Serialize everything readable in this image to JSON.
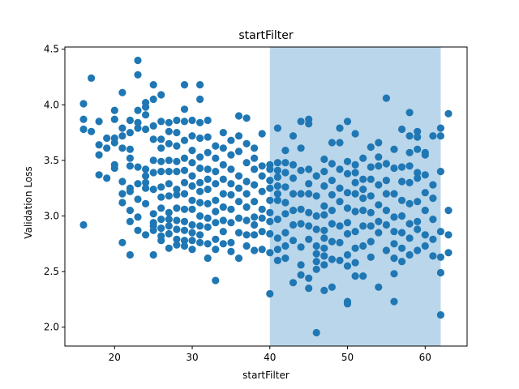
{
  "chart_data": {
    "type": "scatter",
    "title": "startFilter",
    "xlabel": "startFilter",
    "ylabel": "Validation Loss",
    "xlim": [
      13.6,
      65.4
    ],
    "ylim": [
      1.83,
      4.52
    ],
    "xticks": [
      20,
      30,
      40,
      50,
      60
    ],
    "yticks": [
      2.0,
      2.5,
      3.0,
      3.5,
      4.0,
      4.5
    ],
    "xtick_labels": [
      "20",
      "30",
      "40",
      "50",
      "60"
    ],
    "ytick_labels": [
      "2.0",
      "2.5",
      "3.0",
      "3.5",
      "4.0",
      "4.5"
    ],
    "grid": false,
    "highlight_span": {
      "x": [
        40,
        62
      ],
      "color": "#bad6ea"
    },
    "marker_color": "#1f77b4",
    "x": [
      16,
      16,
      16,
      16,
      17,
      17,
      18,
      18,
      18,
      18,
      19,
      19,
      19,
      20,
      20,
      20,
      20,
      20,
      20,
      21,
      21,
      21,
      21,
      21,
      21,
      21,
      21,
      22,
      22,
      22,
      22,
      22,
      22,
      22,
      22,
      22,
      22,
      23,
      23,
      23,
      23,
      23,
      23,
      23,
      23,
      23,
      23,
      24,
      24,
      24,
      24,
      24,
      24,
      24,
      24,
      24,
      24,
      25,
      25,
      25,
      25,
      25,
      25,
      25,
      25,
      25,
      25,
      25,
      25,
      26,
      26,
      26,
      26,
      26,
      26,
      26,
      26,
      26,
      26,
      26,
      26,
      26,
      27,
      27,
      27,
      27,
      27,
      27,
      27,
      27,
      27,
      27,
      27,
      27,
      28,
      28,
      28,
      28,
      28,
      28,
      28,
      28,
      28,
      28,
      28,
      28,
      29,
      29,
      29,
      29,
      29,
      29,
      29,
      29,
      29,
      29,
      29,
      29,
      29,
      30,
      30,
      30,
      30,
      30,
      30,
      30,
      30,
      30,
      30,
      30,
      30,
      31,
      31,
      31,
      31,
      31,
      31,
      31,
      31,
      31,
      31,
      31,
      31,
      31,
      32,
      32,
      32,
      32,
      32,
      32,
      32,
      32,
      32,
      32,
      32,
      33,
      33,
      33,
      33,
      33,
      33,
      33,
      33,
      33,
      33,
      34,
      34,
      34,
      34,
      34,
      34,
      34,
      34,
      34,
      35,
      35,
      35,
      35,
      35,
      35,
      35,
      35,
      35,
      36,
      36,
      36,
      36,
      36,
      36,
      36,
      36,
      36,
      37,
      37,
      37,
      37,
      37,
      37,
      37,
      37,
      37,
      38,
      38,
      38,
      38,
      38,
      38,
      38,
      38,
      38,
      39,
      39,
      39,
      39,
      39,
      39,
      39,
      39,
      40,
      40,
      40,
      40,
      40,
      40,
      40,
      40,
      40,
      40,
      41,
      41,
      41,
      41,
      41,
      41,
      41,
      41,
      41,
      41,
      41,
      42,
      42,
      42,
      42,
      42,
      42,
      42,
      42,
      42,
      43,
      43,
      43,
      43,
      43,
      43,
      43,
      43,
      44,
      44,
      44,
      44,
      44,
      44,
      44,
      44,
      44,
      45,
      45,
      45,
      45,
      45,
      45,
      45,
      45,
      45,
      45,
      46,
      46,
      46,
      46,
      46,
      46,
      46,
      46,
      46,
      47,
      47,
      47,
      47,
      47,
      47,
      47,
      47,
      47,
      47,
      47,
      48,
      48,
      48,
      48,
      48,
      48,
      48,
      48,
      48,
      49,
      49,
      49,
      49,
      49,
      49,
      49,
      49,
      50,
      50,
      50,
      50,
      50,
      50,
      50,
      50,
      50,
      50,
      50,
      51,
      51,
      51,
      51,
      51,
      51,
      51,
      51,
      51,
      51,
      52,
      52,
      52,
      52,
      52,
      52,
      52,
      52,
      53,
      53,
      53,
      53,
      53,
      53,
      53,
      53,
      54,
      54,
      54,
      54,
      54,
      54,
      54,
      54,
      55,
      55,
      55,
      55,
      55,
      55,
      55,
      56,
      56,
      56,
      56,
      56,
      56,
      56,
      56,
      56,
      57,
      57,
      57,
      57,
      57,
      57,
      57,
      57,
      58,
      58,
      58,
      58,
      58,
      58,
      58,
      58,
      58,
      59,
      59,
      59,
      59,
      59,
      59,
      59,
      59,
      59,
      60,
      60,
      60,
      60,
      60,
      60,
      60,
      61,
      61,
      61,
      61,
      61,
      61,
      62,
      62,
      62,
      62,
      62,
      62,
      62,
      63,
      63,
      63,
      63
    ],
    "y": [
      4.01,
      3.87,
      3.78,
      2.92,
      4.24,
      3.76,
      3.85,
      3.64,
      3.55,
      3.37,
      3.7,
      3.61,
      3.34,
      3.95,
      3.87,
      3.7,
      3.66,
      3.46,
      3.43,
      4.11,
      3.79,
      3.72,
      3.61,
      3.31,
      3.2,
      3.12,
      2.76,
      3.86,
      3.75,
      3.6,
      3.52,
      3.45,
      3.25,
      3.22,
      3.05,
      2.95,
      2.65,
      4.4,
      4.27,
      3.95,
      3.84,
      3.79,
      3.44,
      3.29,
      3.15,
      2.99,
      2.87,
      4.02,
      3.98,
      3.91,
      3.78,
      3.3,
      3.25,
      3.11,
      2.83,
      3.42,
      3.36,
      4.18,
      4.05,
      3.81,
      3.69,
      3.5,
      3.39,
      3.24,
      3.02,
      2.94,
      2.91,
      2.87,
      2.65,
      4.09,
      3.85,
      3.69,
      3.61,
      3.49,
      3.4,
      3.26,
      3.17,
      3.07,
      2.97,
      2.89,
      2.82,
      2.78,
      3.84,
      3.76,
      3.65,
      3.5,
      3.4,
      3.29,
      3.18,
      3.03,
      2.97,
      2.91,
      2.84,
      2.71,
      3.86,
      3.75,
      3.63,
      3.49,
      3.4,
      3.24,
      3.19,
      3.07,
      2.96,
      2.88,
      2.79,
      2.74,
      4.18,
      3.96,
      3.85,
      3.68,
      3.52,
      3.41,
      3.3,
      3.2,
      3.06,
      2.95,
      2.87,
      2.78,
      2.73,
      3.86,
      3.72,
      3.59,
      3.48,
      3.36,
      3.27,
      3.14,
      3.06,
      2.92,
      2.85,
      2.78,
      2.7,
      4.18,
      4.05,
      3.84,
      3.7,
      3.53,
      3.43,
      3.3,
      3.22,
      3.12,
      3.0,
      2.91,
      2.83,
      2.76,
      3.86,
      3.71,
      3.57,
      3.42,
      3.33,
      3.24,
      3.11,
      2.98,
      2.9,
      2.75,
      2.62,
      3.63,
      3.52,
      3.4,
      3.29,
      3.14,
      3.04,
      2.94,
      2.79,
      2.7,
      2.42,
      3.75,
      3.61,
      3.46,
      3.33,
      3.2,
      3.08,
      2.96,
      2.86,
      2.75,
      3.68,
      3.55,
      3.42,
      3.29,
      3.19,
      3.06,
      2.94,
      2.76,
      2.68,
      3.9,
      3.72,
      3.58,
      3.36,
      3.25,
      3.13,
      2.98,
      2.85,
      2.62,
      3.88,
      3.65,
      3.48,
      3.31,
      3.2,
      3.08,
      2.96,
      2.83,
      2.73,
      3.61,
      3.52,
      3.42,
      3.28,
      3.13,
      2.99,
      2.92,
      2.83,
      2.69,
      3.74,
      3.45,
      3.36,
      3.22,
      3.06,
      2.98,
      2.86,
      2.7,
      3.46,
      3.42,
      3.32,
      3.25,
      3.14,
      3.03,
      2.95,
      2.84,
      2.67,
      2.3,
      3.79,
      3.48,
      3.41,
      3.35,
      3.27,
      3.2,
      3.14,
      2.97,
      2.8,
      2.7,
      2.6,
      3.59,
      3.48,
      3.39,
      3.26,
      3.12,
      3.02,
      2.85,
      2.73,
      2.62,
      3.72,
      3.46,
      3.34,
      3.2,
      3.05,
      2.92,
      2.78,
      2.4,
      3.85,
      3.61,
      3.41,
      3.2,
      3.06,
      2.93,
      2.72,
      2.56,
      2.47,
      3.87,
      3.83,
      3.42,
      3.29,
      3.2,
      3.03,
      2.91,
      2.79,
      2.44,
      2.35,
      3.36,
      3.18,
      3.0,
      2.88,
      2.73,
      2.66,
      2.59,
      2.52,
      1.95,
      3.51,
      3.4,
      3.27,
      3.09,
      3.01,
      2.87,
      2.8,
      2.71,
      2.64,
      2.56,
      2.33,
      3.66,
      3.47,
      3.32,
      3.19,
      3.05,
      2.93,
      2.77,
      2.61,
      2.36,
      3.79,
      3.66,
      3.42,
      3.25,
      3.13,
      2.91,
      2.76,
      2.6,
      3.85,
      3.49,
      3.38,
      3.21,
      3.07,
      2.94,
      2.84,
      2.65,
      2.55,
      2.23,
      2.21,
      3.74,
      3.46,
      3.39,
      3.3,
      3.2,
      3.04,
      2.86,
      2.71,
      2.58,
      2.46,
      3.52,
      3.33,
      3.24,
      3.16,
      3.05,
      2.91,
      2.73,
      2.46,
      3.62,
      3.44,
      3.33,
      3.18,
      3.03,
      2.91,
      2.77,
      2.63,
      3.66,
      3.53,
      3.45,
      3.28,
      3.1,
      2.95,
      2.85,
      2.36,
      4.06,
      3.47,
      3.32,
      3.2,
      3.05,
      2.92,
      2.69,
      3.6,
      3.43,
      3.2,
      2.99,
      2.86,
      2.75,
      2.62,
      2.48,
      2.23,
      3.78,
      3.44,
      3.31,
      3.14,
      3.0,
      2.85,
      2.71,
      2.59,
      3.93,
      3.72,
      3.57,
      3.45,
      3.3,
      3.11,
      2.93,
      2.8,
      2.65,
      3.76,
      3.71,
      3.6,
      3.39,
      3.34,
      3.13,
      2.95,
      2.88,
      2.69,
      3.57,
      3.55,
      3.37,
      3.21,
      3.05,
      2.83,
      2.73,
      3.72,
      3.28,
      3.16,
      2.97,
      2.79,
      2.64,
      3.79,
      3.72,
      3.4,
      2.86,
      2.63,
      2.49,
      2.11,
      3.92,
      3.05,
      2.83,
      2.67
    ]
  }
}
